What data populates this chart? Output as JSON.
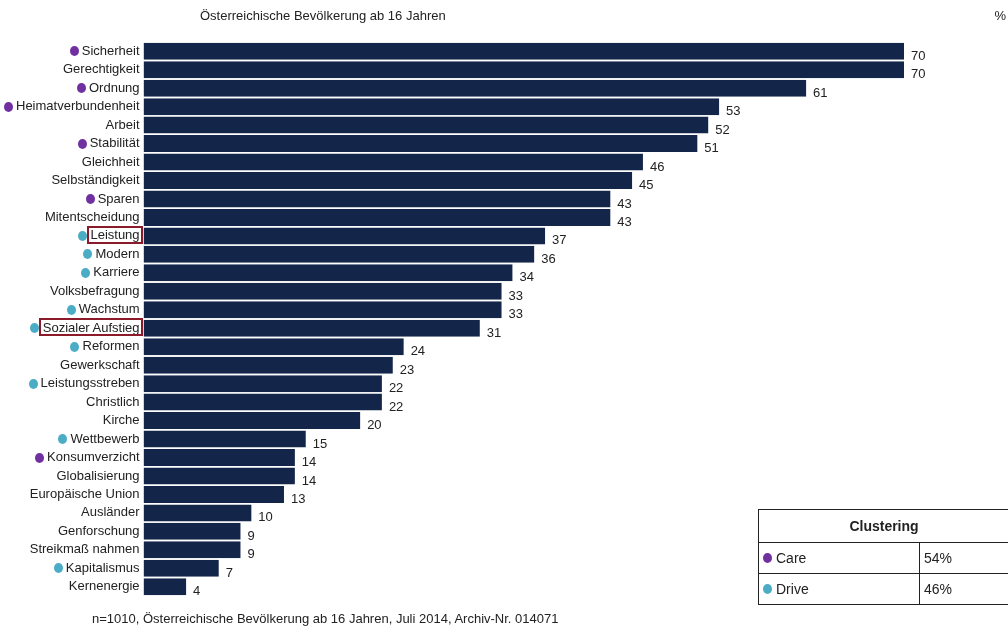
{
  "chart_data": {
    "type": "bar",
    "orientation": "horizontal",
    "title": "Österreichische Bevölkerung ab 16 Jahren",
    "categories": [
      "Sicherheit",
      "Gerechtigkeit",
      "Ordnung",
      "Heimatverbundenheit",
      "Arbeit",
      "Stabilität",
      "Gleichheit",
      "Selbständigkeit",
      "Sparen",
      "Mitentscheidung",
      "Leistung",
      "Modern",
      "Karriere",
      "Volksbefragung",
      "Wachstum",
      "Sozialer Aufstieg",
      "Reformen",
      "Gewerkschaft",
      "Leistungsstreben",
      "Christlich",
      "Kirche",
      "Wettbewerb",
      "Konsumverzicht",
      "Globalisierung",
      "Europäische Union",
      "Ausländer",
      "Genforschung",
      "Streikmaß nahmen",
      "Kapitalismus",
      "Kernenergie"
    ],
    "values": [
      70,
      70,
      61,
      53,
      52,
      51,
      46,
      45,
      43,
      43,
      37,
      36,
      34,
      33,
      33,
      31,
      24,
      23,
      22,
      22,
      20,
      15,
      14,
      14,
      13,
      10,
      9,
      9,
      7,
      4
    ],
    "color": "#13264a",
    "tick_labels": "y",
    "data_labels": true,
    "legend": false,
    "annotations": [
      "n=1010, Österreichische Bevölkerung ab 16 Jahren, Juli 2014, Archiv-Nr. 014071",
      "Clustering",
      "Care",
      "54%",
      "Drive",
      "46%",
      "%"
    ]
  }
}
